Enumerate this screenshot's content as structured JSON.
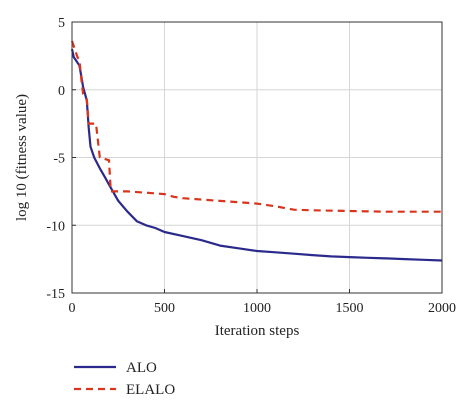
{
  "chart_data": {
    "type": "line",
    "xlabel": "Iteration steps",
    "ylabel": "log 10 (fitness value)",
    "xlim": [
      0,
      2000
    ],
    "ylim": [
      -15,
      5
    ],
    "xticks": [
      0,
      500,
      1000,
      1500,
      2000
    ],
    "yticks": [
      5,
      0,
      -5,
      -10,
      -15
    ],
    "grid": true,
    "legend_position": "below-left",
    "series": [
      {
        "name": "ALO",
        "color": "#2b2a8c",
        "style": "solid",
        "points": [
          [
            0,
            3.0
          ],
          [
            10,
            2.4
          ],
          [
            20,
            2.2
          ],
          [
            30,
            2.0
          ],
          [
            40,
            1.8
          ],
          [
            50,
            1.0
          ],
          [
            60,
            0.2
          ],
          [
            70,
            -0.3
          ],
          [
            80,
            -0.8
          ],
          [
            90,
            -2.8
          ],
          [
            100,
            -4.2
          ],
          [
            120,
            -5.0
          ],
          [
            150,
            -5.8
          ],
          [
            180,
            -6.5
          ],
          [
            200,
            -7.0
          ],
          [
            250,
            -8.2
          ],
          [
            300,
            -9.0
          ],
          [
            350,
            -9.7
          ],
          [
            400,
            -10.0
          ],
          [
            450,
            -10.2
          ],
          [
            500,
            -10.5
          ],
          [
            600,
            -10.8
          ],
          [
            700,
            -11.1
          ],
          [
            800,
            -11.5
          ],
          [
            900,
            -11.7
          ],
          [
            1000,
            -11.9
          ],
          [
            1100,
            -12.0
          ],
          [
            1200,
            -12.1
          ],
          [
            1300,
            -12.2
          ],
          [
            1400,
            -12.3
          ],
          [
            1500,
            -12.35
          ],
          [
            1600,
            -12.4
          ],
          [
            1700,
            -12.45
          ],
          [
            1800,
            -12.5
          ],
          [
            1900,
            -12.55
          ],
          [
            2000,
            -12.6
          ]
        ]
      },
      {
        "name": "ELALO",
        "color": "#d9341c",
        "style": "dashed",
        "points": [
          [
            0,
            3.6
          ],
          [
            15,
            3.0
          ],
          [
            30,
            2.4
          ],
          [
            40,
            2.2
          ],
          [
            50,
            0.8
          ],
          [
            60,
            -0.3
          ],
          [
            80,
            -0.7
          ],
          [
            90,
            -2.5
          ],
          [
            130,
            -2.5
          ],
          [
            150,
            -5.0
          ],
          [
            200,
            -5.2
          ],
          [
            210,
            -7.5
          ],
          [
            300,
            -7.5
          ],
          [
            400,
            -7.6
          ],
          [
            500,
            -7.7
          ],
          [
            550,
            -7.9
          ],
          [
            600,
            -8.0
          ],
          [
            800,
            -8.2
          ],
          [
            900,
            -8.3
          ],
          [
            1000,
            -8.4
          ],
          [
            1100,
            -8.6
          ],
          [
            1200,
            -8.85
          ],
          [
            1300,
            -8.9
          ],
          [
            1500,
            -8.95
          ],
          [
            1700,
            -9.0
          ],
          [
            2000,
            -9.0
          ]
        ]
      }
    ]
  }
}
